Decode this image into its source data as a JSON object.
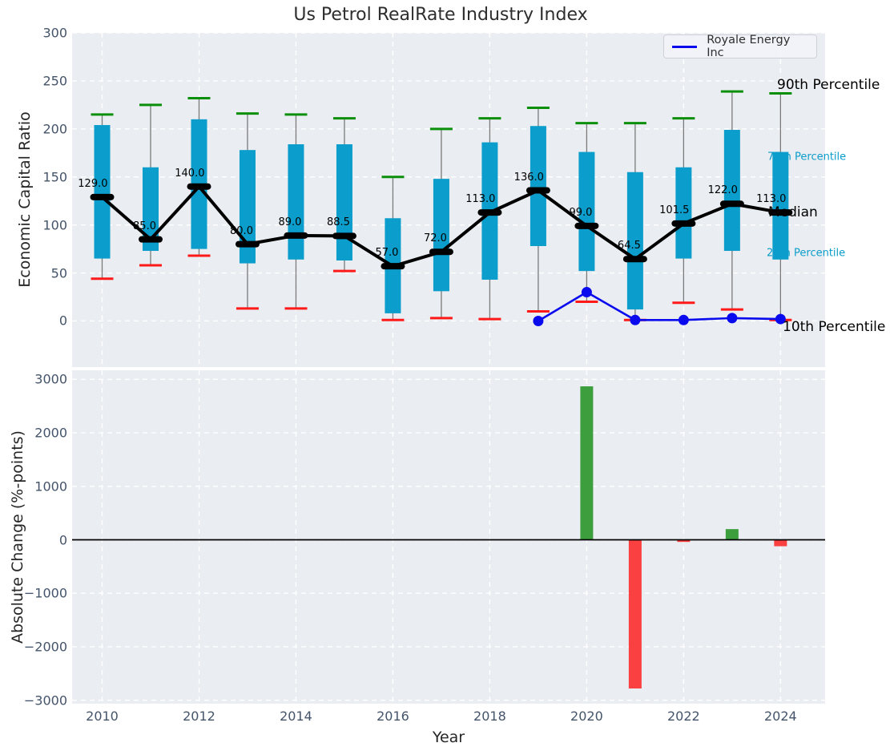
{
  "title": "Us Petrol RealRate Industry Index",
  "colors": {
    "box": "#0b9dcb",
    "whisker": "#7a7a7a",
    "cap_high": "#0a8f0a",
    "cap_low": "#ff1a1a",
    "median": "#000000",
    "company_line": "#0a0aee",
    "bar_positive": "#3d9e3d",
    "bar_negative": "#fa4040",
    "axes_background": "#eaedf1",
    "grid": "#ffffff",
    "tick_label": "#44546a"
  },
  "legend": {
    "label": "Royale Energy Inc"
  },
  "chart_data": [
    {
      "type": "box-percentile-timeseries",
      "title": "Us Petrol RealRate Industry Index",
      "ylabel": "Economic Capital Ratio",
      "ylim": [
        -48,
        300
      ],
      "yticks": [
        0,
        50,
        100,
        150,
        200,
        250,
        300
      ],
      "xlim": [
        2009.38,
        2024.92
      ],
      "xticks": [
        2010,
        2012,
        2014,
        2016,
        2018,
        2020,
        2022,
        2024
      ],
      "grid": "dashed-white",
      "years": [
        2010,
        2011,
        2012,
        2013,
        2014,
        2015,
        2016,
        2017,
        2018,
        2019,
        2020,
        2021,
        2022,
        2023,
        2024
      ],
      "p90": [
        215,
        225,
        232,
        216,
        215,
        211,
        150,
        200,
        211,
        222,
        206,
        206,
        211,
        239,
        237
      ],
      "p75": [
        204,
        160,
        210,
        178,
        184,
        184,
        107,
        148,
        186,
        203,
        176,
        155,
        160,
        199,
        176
      ],
      "median": [
        129,
        85,
        140,
        80,
        89,
        88.5,
        57,
        72,
        113,
        136,
        99,
        64.5,
        101.5,
        122,
        113
      ],
      "median_labels": [
        "129.0",
        "85.0",
        "140.0",
        "80.0",
        "89.0",
        "88.5",
        "57.0",
        "72.0",
        "113.0",
        "136.0",
        "99.0",
        "64.5",
        "101.5",
        "122.0",
        "113.0"
      ],
      "p25": [
        65,
        73,
        75,
        60,
        64,
        63,
        8,
        31,
        43,
        78,
        52,
        12,
        65,
        73,
        64
      ],
      "p10": [
        44,
        58,
        68,
        13,
        13,
        52,
        1,
        3,
        2,
        10,
        20,
        1,
        19,
        12,
        1
      ],
      "company": {
        "name": "Royale Energy Inc",
        "years": [
          2019,
          2020,
          2021,
          2022,
          2023,
          2024
        ],
        "values": [
          0,
          30,
          1,
          1,
          3,
          2
        ]
      },
      "annotations": [
        {
          "label": "90th Percentile",
          "series": "p90",
          "color": "black"
        },
        {
          "label": "75th Percentile",
          "series": "p75",
          "color": "cyan"
        },
        {
          "label": "Median",
          "series": "median",
          "color": "black"
        },
        {
          "label": "25th Percentile",
          "series": "p25",
          "color": "cyan"
        },
        {
          "label": "10th Percentile",
          "series": "p10",
          "color": "black"
        }
      ]
    },
    {
      "type": "bar",
      "ylabel": "Absolute Change (%-points)",
      "xlabel": "Year",
      "ylim": [
        -3065,
        3170
      ],
      "yticks": [
        -3000,
        -2000,
        -1000,
        0,
        1000,
        2000,
        3000
      ],
      "xticks": [
        2010,
        2012,
        2014,
        2016,
        2018,
        2020,
        2022,
        2024
      ],
      "grid": "dashed-white",
      "zero_line": true,
      "years": [
        2020,
        2021,
        2022,
        2023,
        2024
      ],
      "values": [
        2870,
        -2780,
        -40,
        200,
        -120
      ]
    }
  ]
}
